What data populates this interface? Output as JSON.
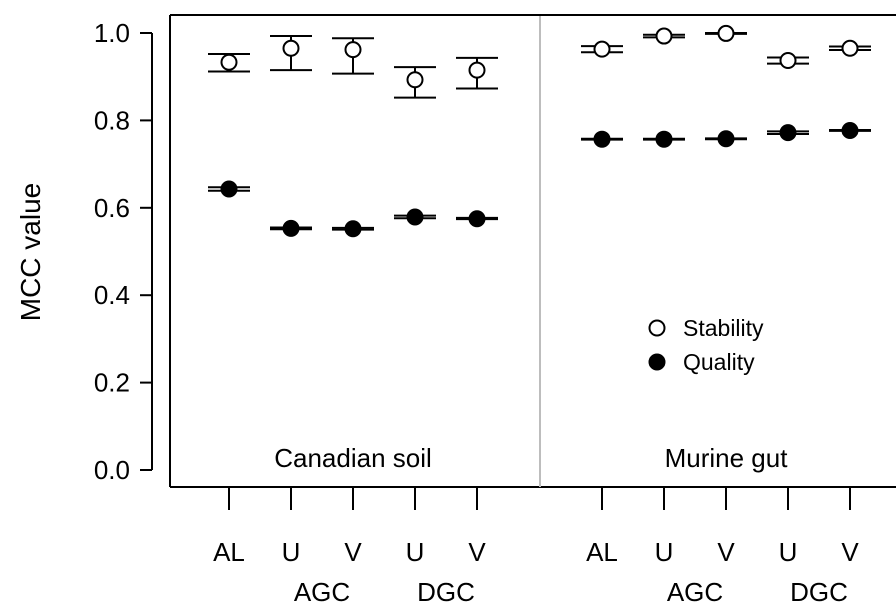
{
  "chart_data": {
    "type": "scatter",
    "ylabel": "MCC value",
    "ylim": [
      0.0,
      1.0
    ],
    "yticks": [
      "0.0",
      "0.2",
      "0.4",
      "0.6",
      "0.8",
      "1.0"
    ],
    "grid": false,
    "legend_position": "inside-right",
    "marker_colors": {
      "stability": "#ffffff",
      "quality": "#000000"
    },
    "categories": [
      "AL",
      "U",
      "V",
      "U",
      "V"
    ],
    "group_labels": [
      "AGC",
      "DGC"
    ],
    "panels": [
      {
        "name": "Canadian soil",
        "series": [
          {
            "name": "Stability",
            "values": [
              0.933,
              0.965,
              0.962,
              0.893,
              0.915
            ],
            "error_low": [
              0.912,
              0.915,
              0.907,
              0.852,
              0.873
            ],
            "error_high": [
              0.952,
              0.993,
              0.988,
              0.922,
              0.943
            ]
          },
          {
            "name": "Quality",
            "values": [
              0.643,
              0.553,
              0.552,
              0.579,
              0.575
            ],
            "error_low": [
              0.639,
              0.551,
              0.55,
              0.576,
              0.574
            ],
            "error_high": [
              0.647,
              0.555,
              0.554,
              0.582,
              0.577
            ]
          }
        ]
      },
      {
        "name": "Murine gut",
        "series": [
          {
            "name": "Stability",
            "values": [
              0.963,
              0.993,
              0.999,
              0.937,
              0.965
            ],
            "error_low": [
              0.956,
              0.99,
              0.998,
              0.93,
              0.961
            ],
            "error_high": [
              0.97,
              0.996,
              1.0,
              0.944,
              0.969
            ]
          },
          {
            "name": "Quality",
            "values": [
              0.757,
              0.757,
              0.758,
              0.772,
              0.777
            ],
            "error_low": [
              0.756,
              0.756,
              0.757,
              0.769,
              0.776
            ],
            "error_high": [
              0.758,
              0.758,
              0.759,
              0.775,
              0.778
            ]
          }
        ]
      }
    ]
  }
}
